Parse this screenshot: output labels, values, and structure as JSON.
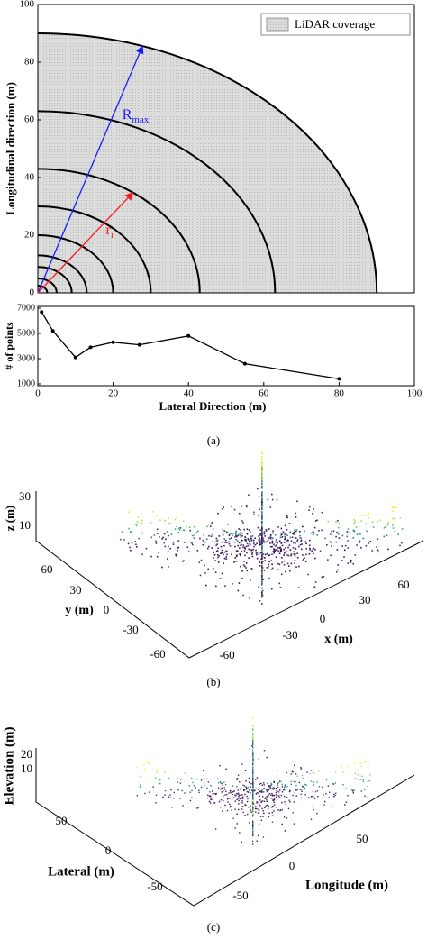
{
  "chart_data": [
    {
      "type": "coverage",
      "ylabel": "Longitudinal direction (m)",
      "legend": "LiDAR coverage",
      "coverage_radius": 90,
      "radii": [
        2.5,
        5,
        9,
        13,
        20,
        30,
        43,
        63,
        90
      ],
      "annotations": [
        {
          "text": "R",
          "sub": "max",
          "color": "#1a1aff",
          "radius": 90,
          "angle": 72
        },
        {
          "text": "r",
          "sub": "i",
          "color": "#ff1a1a",
          "radius": 43,
          "angle": 54
        }
      ],
      "xlim": [
        0,
        100
      ],
      "ylim": [
        0,
        100
      ],
      "yticks": [
        0,
        20,
        40,
        60,
        80,
        100
      ]
    },
    {
      "type": "line",
      "xlabel": "Lateral Direction (m)",
      "ylabel": "# of points",
      "x": [
        1,
        4,
        10,
        14,
        20,
        27,
        40,
        55,
        80
      ],
      "values": [
        6700,
        5200,
        3100,
        3900,
        4300,
        4100,
        4800,
        2600,
        1400
      ],
      "color": "#000000",
      "xlim": [
        0,
        100
      ],
      "ylim": [
        1000,
        7000
      ],
      "xticks": [
        0,
        20,
        40,
        60,
        80,
        100
      ],
      "yticks": [
        1000,
        3000,
        5000,
        7000
      ],
      "caption": "(a)"
    },
    {
      "type": "pointcloud3d",
      "zlabel": "z (m)",
      "zticks": [
        30,
        10
      ],
      "ylabel": "y (m)",
      "yticks": [
        60,
        30,
        0,
        -30,
        -60
      ],
      "xlabel": "x (m)",
      "xticks": [
        -60,
        -30,
        0,
        30,
        60
      ],
      "caption": "(b)"
    },
    {
      "type": "pointcloud3d",
      "zlabel": "Elevation (m)",
      "zticks": [
        20,
        10
      ],
      "ylabel": "Lateral (m)",
      "yticks": [
        50,
        0,
        -50
      ],
      "xlabel": "Longitude (m)",
      "xticks": [
        -50,
        0,
        50
      ],
      "caption": "(c)"
    }
  ]
}
